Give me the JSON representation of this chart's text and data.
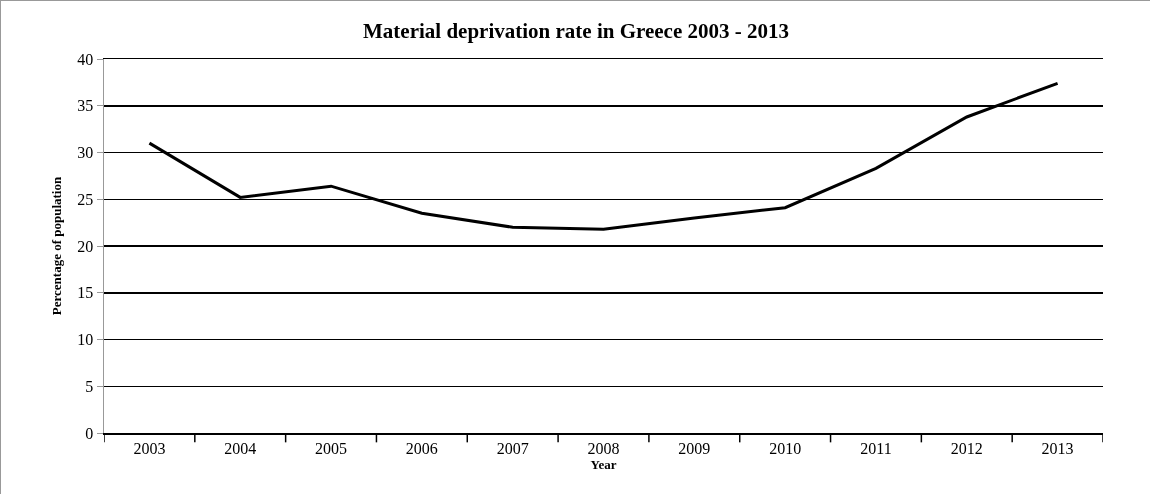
{
  "chart_data": {
    "type": "line",
    "title": "Material deprivation rate in Greece 2003 - 2013",
    "xlabel": "Year",
    "ylabel": "Percentage of population",
    "categories": [
      "2003",
      "2004",
      "2005",
      "2006",
      "2007",
      "2008",
      "2009",
      "2010",
      "2011",
      "2012",
      "2013"
    ],
    "series": [
      {
        "color": "#000000",
        "values": [
          31.0,
          25.2,
          26.4,
          23.5,
          22.0,
          21.8,
          23.0,
          24.1,
          28.3,
          33.8,
          37.4
        ]
      }
    ],
    "ylim": [
      0,
      40
    ],
    "yticks": [
      0,
      5,
      10,
      15,
      20,
      25,
      30,
      35,
      40
    ],
    "grid": "y",
    "marker": "none",
    "line_style": "solid"
  }
}
